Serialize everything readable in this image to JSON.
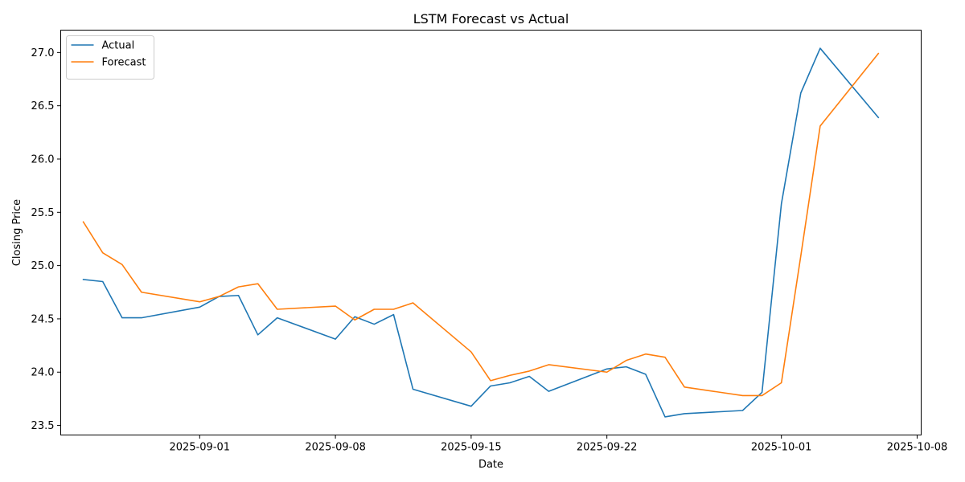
{
  "chart_data": {
    "type": "line",
    "title": "LSTM Forecast vs Actual",
    "xlabel": "Date",
    "ylabel": "Closing Price",
    "xlim": [
      "2025-08-24T20:00",
      "2025-10-08T05:00"
    ],
    "ylim": [
      23.41,
      27.21
    ],
    "x_ticks": [
      "2025-09-01",
      "2025-09-08",
      "2025-09-15",
      "2025-09-22",
      "2025-10-01",
      "2025-10-08"
    ],
    "y_ticks": [
      "23.5",
      "24.0",
      "24.5",
      "25.0",
      "25.5",
      "26.0",
      "26.5",
      "27.0"
    ],
    "grid": false,
    "legend_position": "upper-left",
    "series": [
      {
        "name": "Actual",
        "color": "#1f77b4",
        "points": [
          [
            "2025-08-26",
            24.87
          ],
          [
            "2025-08-27",
            24.85
          ],
          [
            "2025-08-28",
            24.51
          ],
          [
            "2025-08-29",
            24.51
          ],
          [
            "2025-09-01",
            24.61
          ],
          [
            "2025-09-02",
            24.71
          ],
          [
            "2025-09-03",
            24.72
          ],
          [
            "2025-09-04",
            24.35
          ],
          [
            "2025-09-05",
            24.51
          ],
          [
            "2025-09-08",
            24.31
          ],
          [
            "2025-09-09",
            24.52
          ],
          [
            "2025-09-10",
            24.45
          ],
          [
            "2025-09-11",
            24.54
          ],
          [
            "2025-09-12",
            23.84
          ],
          [
            "2025-09-15",
            23.68
          ],
          [
            "2025-09-16",
            23.87
          ],
          [
            "2025-09-17",
            23.9
          ],
          [
            "2025-09-18",
            23.96
          ],
          [
            "2025-09-19",
            23.82
          ],
          [
            "2025-09-22",
            24.03
          ],
          [
            "2025-09-23",
            24.05
          ],
          [
            "2025-09-24",
            23.98
          ],
          [
            "2025-09-25",
            23.58
          ],
          [
            "2025-09-26",
            23.61
          ],
          [
            "2025-09-29",
            23.64
          ],
          [
            "2025-09-30",
            23.81
          ],
          [
            "2025-10-01",
            25.58
          ],
          [
            "2025-10-02",
            26.62
          ],
          [
            "2025-10-03",
            27.04
          ],
          [
            "2025-10-06",
            26.39
          ]
        ]
      },
      {
        "name": "Forecast",
        "color": "#ff7f0e",
        "points": [
          [
            "2025-08-26",
            25.41
          ],
          [
            "2025-08-27",
            25.12
          ],
          [
            "2025-08-28",
            25.01
          ],
          [
            "2025-08-29",
            24.75
          ],
          [
            "2025-09-01",
            24.66
          ],
          [
            "2025-09-02",
            24.71
          ],
          [
            "2025-09-03",
            24.8
          ],
          [
            "2025-09-04",
            24.83
          ],
          [
            "2025-09-05",
            24.59
          ],
          [
            "2025-09-08",
            24.62
          ],
          [
            "2025-09-09",
            24.49
          ],
          [
            "2025-09-10",
            24.59
          ],
          [
            "2025-09-11",
            24.59
          ],
          [
            "2025-09-12",
            24.65
          ],
          [
            "2025-09-15",
            24.19
          ],
          [
            "2025-09-16",
            23.92
          ],
          [
            "2025-09-17",
            23.97
          ],
          [
            "2025-09-18",
            24.01
          ],
          [
            "2025-09-19",
            24.07
          ],
          [
            "2025-09-22",
            24.0
          ],
          [
            "2025-09-23",
            24.11
          ],
          [
            "2025-09-24",
            24.17
          ],
          [
            "2025-09-25",
            24.14
          ],
          [
            "2025-09-26",
            23.86
          ],
          [
            "2025-09-29",
            23.78
          ],
          [
            "2025-09-30",
            23.78
          ],
          [
            "2025-10-01",
            23.9
          ],
          [
            "2025-10-02",
            25.09
          ],
          [
            "2025-10-03",
            26.31
          ],
          [
            "2025-10-06",
            26.99
          ]
        ]
      }
    ]
  }
}
